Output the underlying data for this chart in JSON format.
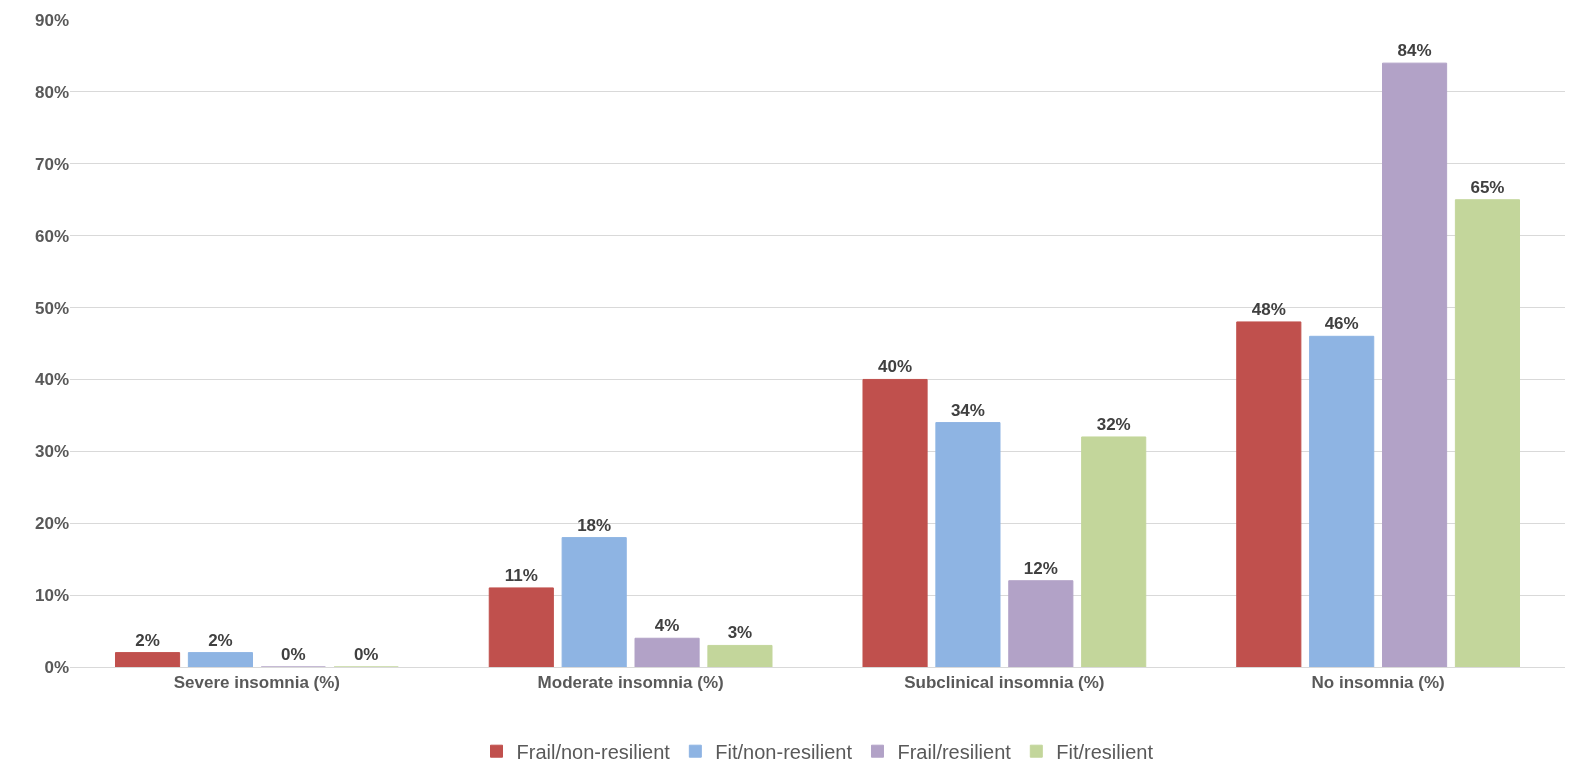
{
  "chart_data": {
    "type": "bar",
    "categories": [
      "Severe insomnia (%)",
      "Moderate insomnia (%)",
      "Subclinical insomnia (%)",
      "No insomnia (%)"
    ],
    "series": [
      {
        "name": "Frail/non-resilient",
        "color": "#c0504d",
        "values": [
          2,
          11,
          40,
          48
        ],
        "value_labels": [
          "2%",
          "11%",
          "40%",
          "48%"
        ]
      },
      {
        "name": "Fit/non-resilient",
        "color": "#8eb4e3",
        "values": [
          2,
          18,
          34,
          46
        ],
        "value_labels": [
          "2%",
          "18%",
          "34%",
          "46%"
        ]
      },
      {
        "name": "Frail/resilient",
        "color": "#b2a2c7",
        "values": [
          0,
          4,
          12,
          84
        ],
        "value_labels": [
          "0%",
          "4%",
          "12%",
          "84%"
        ]
      },
      {
        "name": "Fit/resilient",
        "color": "#c3d69b",
        "values": [
          0,
          3,
          32,
          65
        ],
        "value_labels": [
          "0%",
          "3%",
          "32%",
          "65%"
        ]
      }
    ],
    "ylim": [
      0,
      90
    ],
    "yticks": [
      {
        "value": 0,
        "label": "0%"
      },
      {
        "value": 10,
        "label": "10%"
      },
      {
        "value": 20,
        "label": "20%"
      },
      {
        "value": 30,
        "label": "30%"
      },
      {
        "value": 40,
        "label": "40%"
      },
      {
        "value": 50,
        "label": "50%"
      },
      {
        "value": 60,
        "label": "60%"
      },
      {
        "value": 70,
        "label": "70%"
      },
      {
        "value": 80,
        "label": "80%"
      },
      {
        "value": 90,
        "label": "90%"
      }
    ],
    "grid": "y",
    "legend": "bottom"
  }
}
